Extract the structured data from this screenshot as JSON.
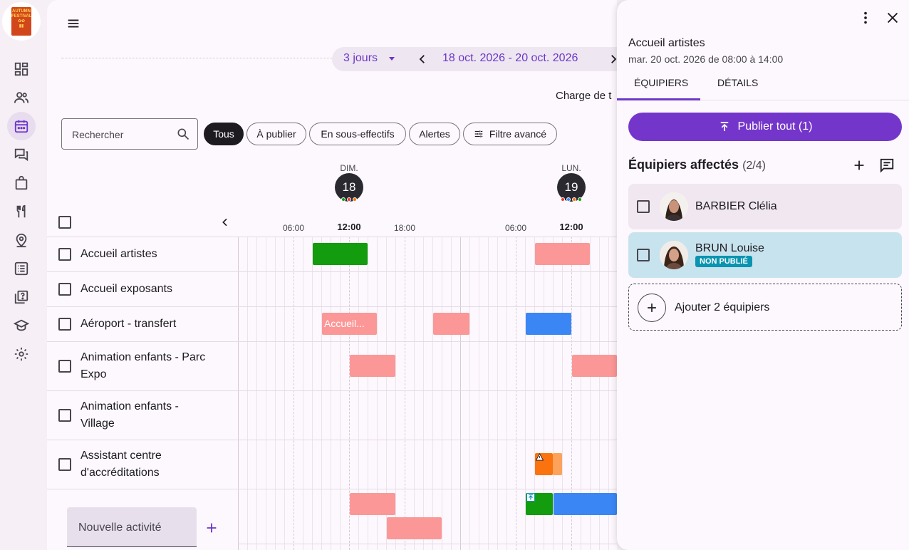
{
  "app": {
    "logo_text": "AUTUMN FESTIVAL",
    "nav": [
      "dashboard",
      "users",
      "planning",
      "messages",
      "shop",
      "catering",
      "locations",
      "lists",
      "faq",
      "training",
      "settings"
    ]
  },
  "toolbar": {
    "period_mode": "3 jours",
    "date_range": "18 oct. 2026 - 20 oct. 2026",
    "charge_label": "Charge de t"
  },
  "filters": {
    "search_placeholder": "Rechercher",
    "chips": [
      "Tous",
      "À publier",
      "En sous-effectifs",
      "Alertes",
      "Filtre avancé"
    ]
  },
  "days": [
    {
      "name": "DIM.",
      "num": "18",
      "dots": [
        "#139c0e",
        "#e53935",
        "#fa730f"
      ]
    },
    {
      "name": "LUN.",
      "num": "19",
      "dots": [
        "#e53935",
        "#3b86f5",
        "#fa730f",
        "#139c0e"
      ]
    }
  ],
  "ticks": [
    "06:00",
    "12:00",
    "18:00",
    "06:00",
    "12:00"
  ],
  "activities": [
    "Accueil artistes",
    "Accueil exposants",
    "Aéroport - transfert",
    "Animation enfants - Parc Expo",
    "Animation enfants - Village",
    "Assistant centre d'accréditations"
  ],
  "shift_labels": {
    "accueil": "Accueil..."
  },
  "new_activity": {
    "placeholder": "Nouvelle activité"
  },
  "panel": {
    "title": "Accueil artistes",
    "subtitle": "mar. 20 oct. 2026 de 08:00 à 14:00",
    "tabs": [
      "ÉQUIPIERS",
      "DÉTAILS"
    ],
    "publish_label": "Publier tout (1)",
    "assigned_title": "Équipiers affectés",
    "assigned_count": "(2/4)",
    "staff": [
      {
        "name": "BARBIER Clélia",
        "badge": ""
      },
      {
        "name": "BRUN Louise",
        "badge": "NON PUBLIÉ"
      }
    ],
    "add_label": "Ajouter 2 équipiers"
  },
  "colors": {
    "accent": "#6d37c8",
    "publish": "#7436ca",
    "shift_green": "#139c0e",
    "shift_pink": "#fc9797",
    "shift_blue": "#3b86f5",
    "shift_orange": "#fa730f",
    "badge": "#0a94b0"
  }
}
